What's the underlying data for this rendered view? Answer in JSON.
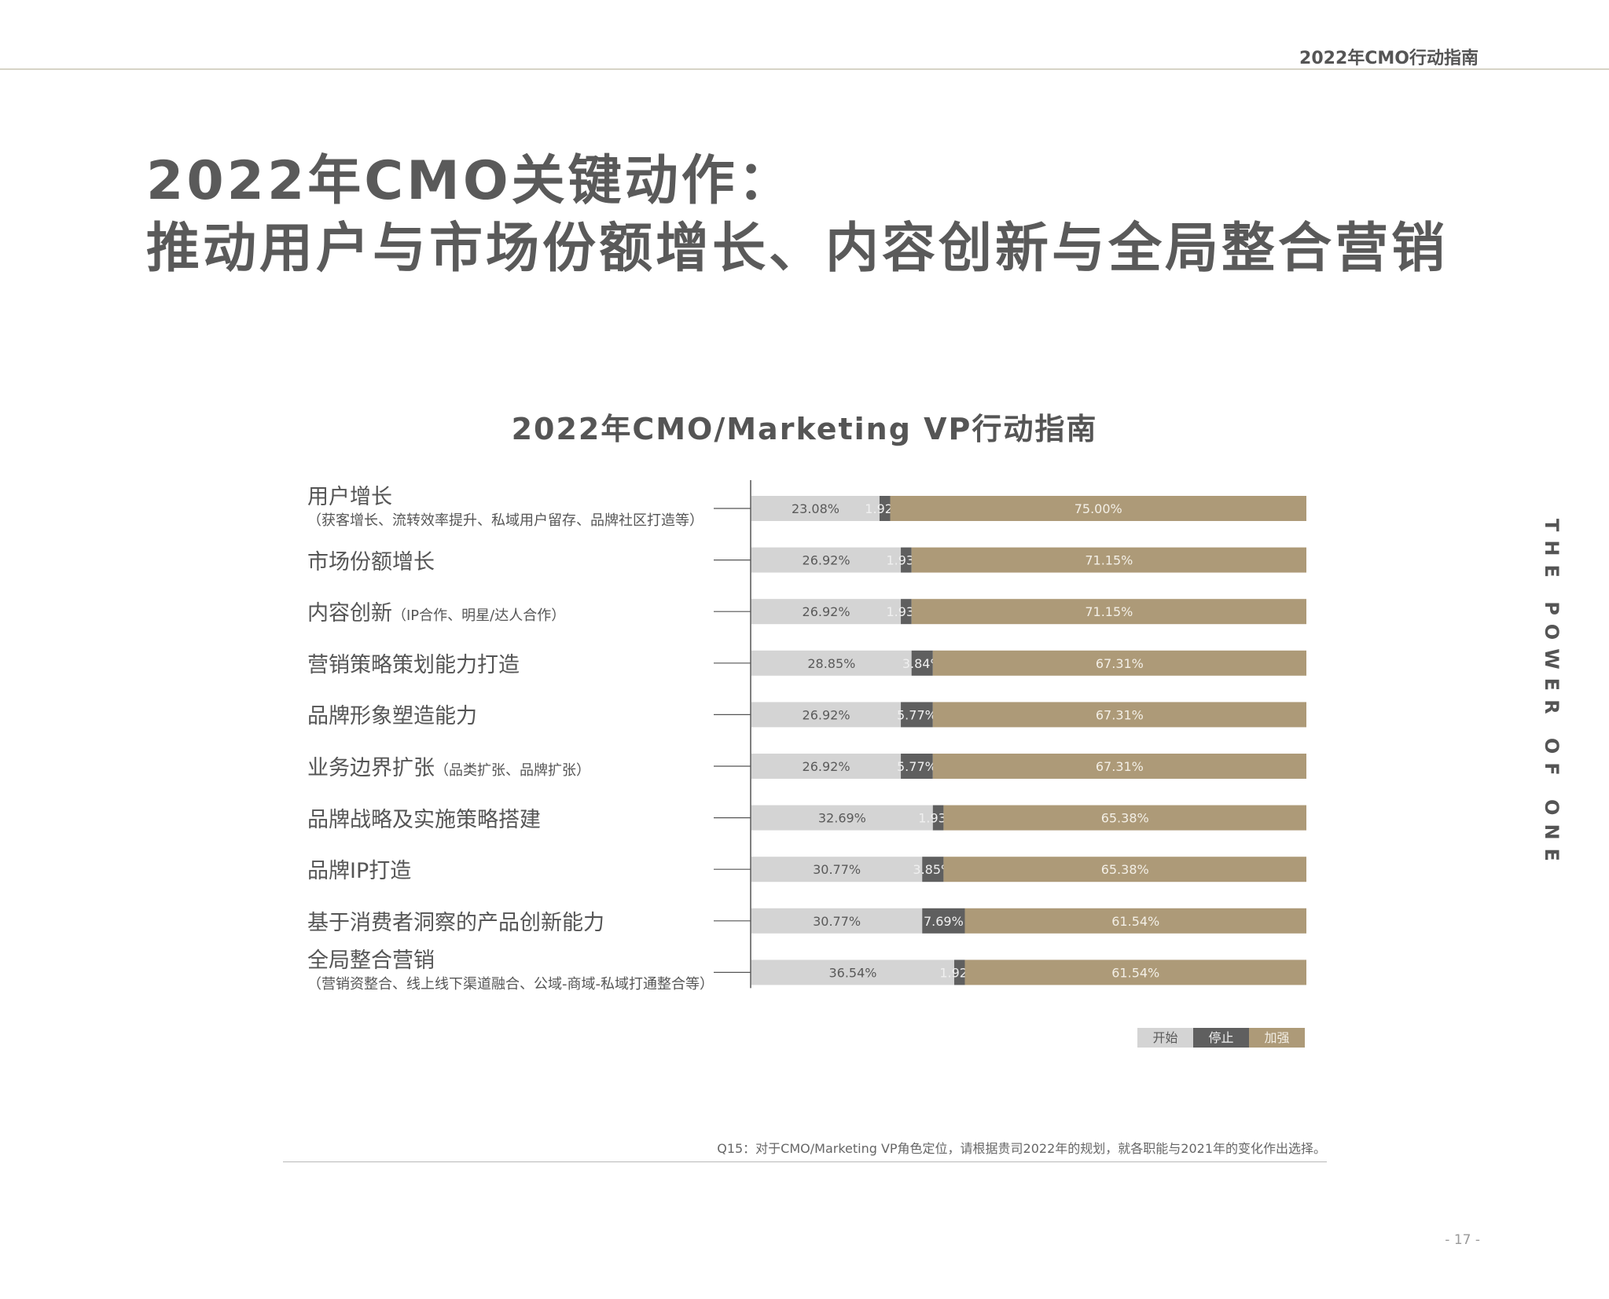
{
  "header": {
    "title": "2022年CMO行动指南"
  },
  "page_title": {
    "line1": "2022年CMO关键动作：",
    "line2": "推动用户与市场份额增长、内容创新与全局整合营销"
  },
  "side_text": "THE POWER OF ONE",
  "footnote": "Q15：对于CMO/Marketing VP角色定位，请根据贵司2022年的规划，就各职能与2021年的变化作出选择。",
  "page_number": "- 17 -",
  "colors": {
    "start": "#d4d4d4",
    "stop": "#5f5f5f",
    "strengthen": "#ad9a78",
    "label_on_light": "#5a5a5a",
    "label_on_dark": "#f0f0f0",
    "label_on_gold": "#f3efe6"
  },
  "chart_data": {
    "type": "bar",
    "orientation": "horizontal",
    "stacked": true,
    "normalized": true,
    "title": "2022年CMO/Marketing VP行动指南",
    "legend_position": "bottom-right",
    "grid": false,
    "categories": [
      {
        "label": "用户增长",
        "sub": "（获客增长、流转效率提升、私域用户留存、品牌社区打造等）",
        "sub_position": "below"
      },
      {
        "label": "市场份额增长",
        "sub": "",
        "sub_position": "none"
      },
      {
        "label": "内容创新",
        "sub": "（IP合作、明星/达人合作）",
        "sub_position": "inline"
      },
      {
        "label": "营销策略策划能力打造",
        "sub": "",
        "sub_position": "none"
      },
      {
        "label": "品牌形象塑造能力",
        "sub": "",
        "sub_position": "none"
      },
      {
        "label": "业务边界扩张",
        "sub": "（品类扩张、品牌扩张）",
        "sub_position": "inline"
      },
      {
        "label": "品牌战略及实施策略搭建",
        "sub": "",
        "sub_position": "none"
      },
      {
        "label": "品牌IP打造",
        "sub": "",
        "sub_position": "none"
      },
      {
        "label": "基于消费者洞察的产品创新能力",
        "sub": "",
        "sub_position": "none"
      },
      {
        "label": "全局整合营销",
        "sub": "（营销资整合、线上线下渠道融合、公域-商域-私域打通整合等）",
        "sub_position": "below"
      }
    ],
    "series": [
      {
        "name": "开始",
        "values": [
          23.08,
          26.92,
          26.92,
          28.85,
          26.92,
          26.92,
          32.69,
          30.77,
          30.77,
          36.54
        ],
        "labels": [
          "23.08%",
          "26.92%",
          "26.92%",
          "28.85%",
          "26.92%",
          "26.92%",
          "32.69%",
          "30.77%",
          "30.77%",
          "36.54%"
        ]
      },
      {
        "name": "停止",
        "values": [
          1.92,
          1.93,
          1.93,
          3.84,
          5.77,
          5.77,
          1.93,
          3.85,
          7.69,
          1.92
        ],
        "labels": [
          "1.92%",
          "1.93%",
          "1.93%",
          "3.84%",
          "5.77%",
          "5.77%",
          "1.93%",
          "3.85%",
          "7.69%",
          "1.92%"
        ]
      },
      {
        "name": "加强",
        "values": [
          75.0,
          71.15,
          71.15,
          67.31,
          67.31,
          67.31,
          65.38,
          65.38,
          61.54,
          61.54
        ],
        "labels": [
          "75.00%",
          "71.15%",
          "71.15%",
          "67.31%",
          "67.31%",
          "67.31%",
          "65.38%",
          "65.38%",
          "61.54%",
          "61.54%"
        ]
      }
    ],
    "xlim": [
      0,
      100
    ]
  }
}
